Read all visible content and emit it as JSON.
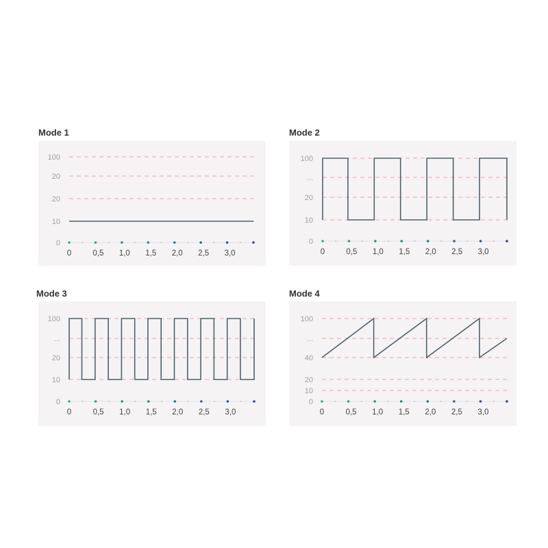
{
  "chart_data": [
    {
      "type": "line",
      "title": "Mode 1",
      "yticks": [
        "0",
        "10",
        "20",
        "20",
        "100"
      ],
      "xticks": [
        "0",
        "0,5",
        "1,0",
        "1,5",
        "2,0",
        "2,5",
        "3,0"
      ],
      "xlim": [
        0,
        3.5
      ],
      "grid": true,
      "series": [
        {
          "x": [
            0,
            3.5
          ],
          "y": [
            "10",
            "10"
          ]
        }
      ]
    },
    {
      "type": "line",
      "title": "Mode 2",
      "yticks": [
        "0",
        "10",
        "20",
        "...",
        "100"
      ],
      "xticks": [
        "0",
        "0,5",
        "1,0",
        "1,5",
        "2,0",
        "2,5",
        "3,0"
      ],
      "xlim": [
        0,
        3.5
      ],
      "grid": true,
      "series": [
        {
          "x": [
            0,
            0,
            0.48,
            0.48,
            0.98,
            0.98,
            1.48,
            1.48,
            1.98,
            1.98,
            2.48,
            2.48,
            2.98,
            2.98,
            3.5,
            3.5
          ],
          "y": [
            "10",
            "100",
            "100",
            "10",
            "10",
            "100",
            "100",
            "10",
            "10",
            "100",
            "100",
            "10",
            "10",
            "100",
            "100",
            "10"
          ]
        }
      ]
    },
    {
      "type": "line",
      "title": "Mode 3",
      "yticks": [
        "0",
        "10",
        "20",
        "...",
        "100"
      ],
      "xticks": [
        "0",
        "0,5",
        "1,0",
        "1,5",
        "2,0",
        "2,5",
        "3,0"
      ],
      "xlim": [
        0,
        3.5
      ],
      "grid": true,
      "series": [
        {
          "x": [
            0,
            0,
            0.24,
            0.24,
            0.49,
            0.49,
            0.74,
            0.74,
            0.99,
            0.99,
            1.24,
            1.24,
            1.49,
            1.49,
            1.74,
            1.74,
            1.99,
            1.99,
            2.24,
            2.24,
            2.49,
            2.49,
            2.74,
            2.74,
            2.99,
            2.99,
            3.24,
            3.24,
            3.5,
            3.5
          ],
          "y": [
            "10",
            "100",
            "100",
            "10",
            "10",
            "100",
            "100",
            "10",
            "10",
            "100",
            "100",
            "10",
            "10",
            "100",
            "100",
            "10",
            "10",
            "100",
            "100",
            "10",
            "10",
            "100",
            "100",
            "10",
            "10",
            "100",
            "100",
            "10",
            "10",
            "100"
          ]
        }
      ]
    },
    {
      "type": "line",
      "title": "Mode 4",
      "yticks": [
        "0",
        "10",
        "20",
        "40",
        "...",
        "100"
      ],
      "xticks": [
        "0",
        "0,5",
        "1,0",
        "1,5",
        "2,0",
        "2,5",
        "3,0"
      ],
      "xlim": [
        0,
        3.5
      ],
      "grid": true,
      "series": [
        {
          "x": [
            0,
            0.98,
            0.98,
            1.98,
            1.98,
            2.98,
            2.98,
            3.5
          ],
          "y": [
            "40",
            "100",
            "40",
            "100",
            "40",
            "100",
            "40",
            "..."
          ]
        }
      ]
    }
  ],
  "colors": {
    "panel_bg": "#f5f3f4",
    "line": "#4f626b",
    "grid": "#e6a3ab",
    "dot_start": "#3aa88a",
    "dot_end": "#2d4a82",
    "minor_dot": "#c9c9cc"
  }
}
